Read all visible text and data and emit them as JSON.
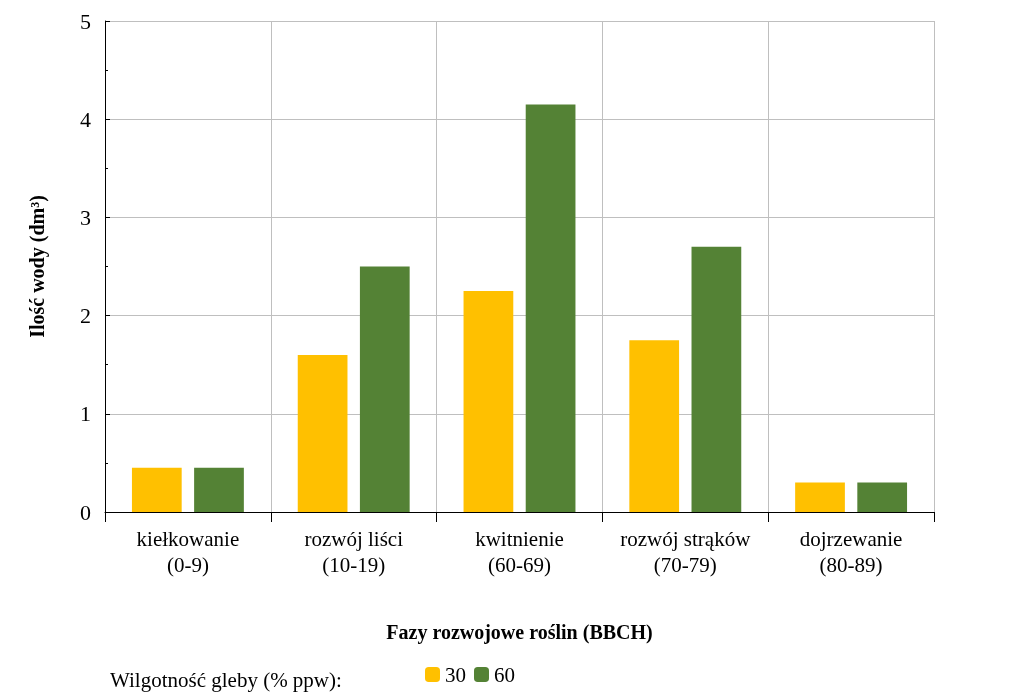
{
  "chart_data": {
    "type": "bar",
    "xlabel": "Fazy rozwojowe roślin (BBCH)",
    "ylabel": "Ilość wody (dm³)",
    "legend_title": "Wilgotność gleby (% ppw):",
    "categories": [
      "kiełkowanie\n(0-9)",
      "rozwój liści\n(10-19)",
      "kwitnienie\n(60-69)",
      "rozwój strąków\n(70-79)",
      "dojrzewanie\n(80-89)"
    ],
    "series": [
      {
        "name": "30",
        "color": "#ffc000",
        "values": [
          0.45,
          1.6,
          2.25,
          1.75,
          0.3
        ]
      },
      {
        "name": "60",
        "color": "#548235",
        "values": [
          0.45,
          2.5,
          4.15,
          2.7,
          0.3
        ]
      }
    ],
    "ylim": [
      0,
      5
    ],
    "yticks": [
      0,
      1,
      2,
      3,
      4,
      5
    ],
    "grid": true,
    "legend": "bottom left"
  }
}
